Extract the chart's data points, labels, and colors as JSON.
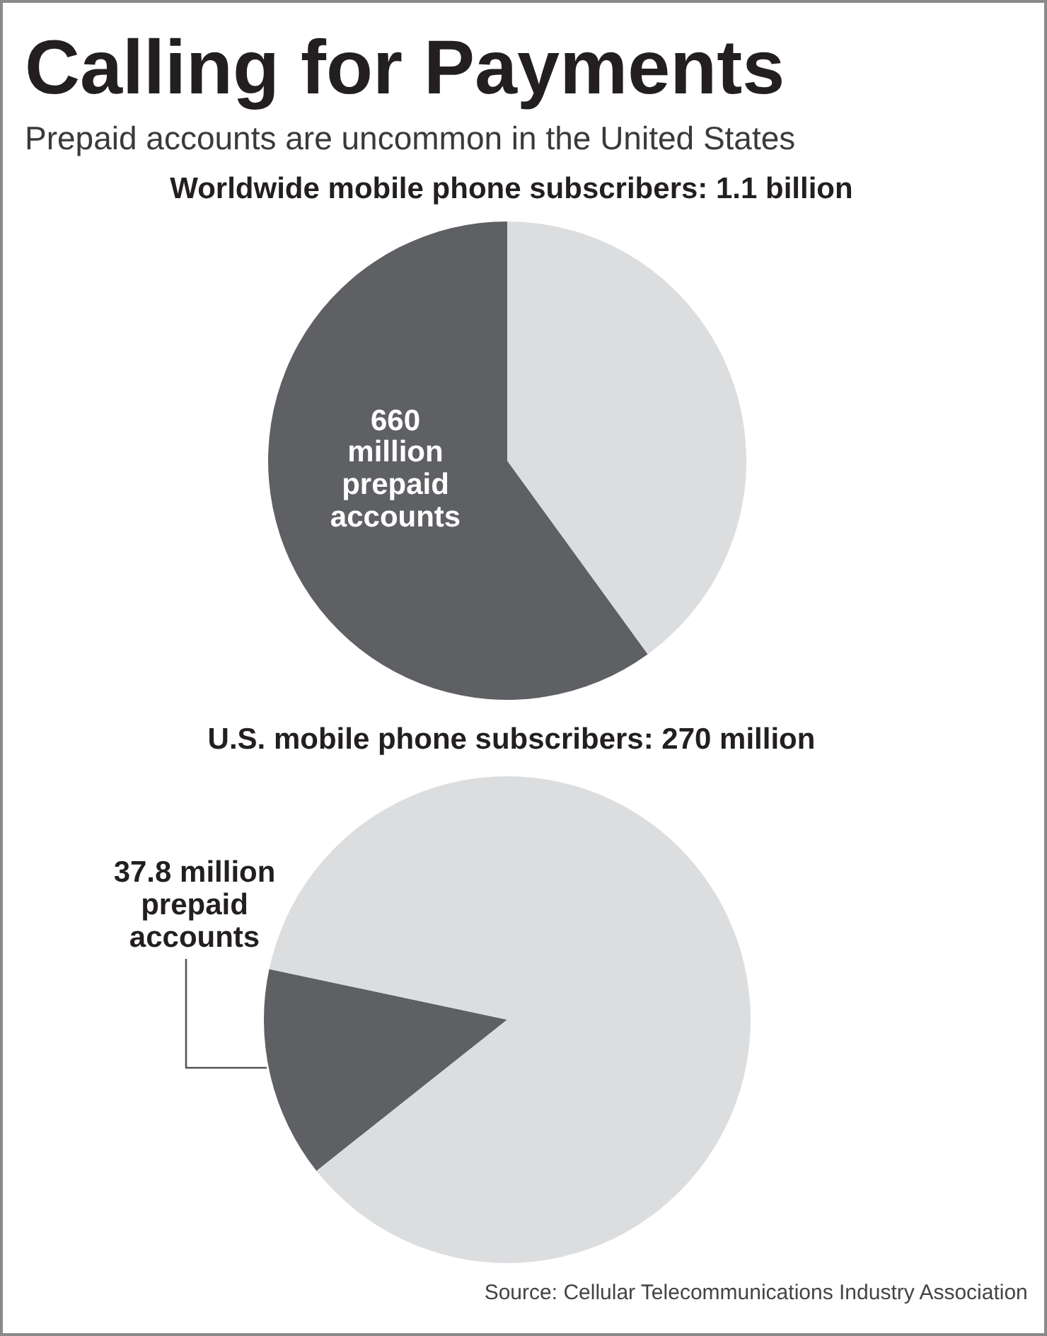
{
  "chart_data": [
    {
      "type": "other",
      "title": "Calling for Payments",
      "subtitle": "Prepaid accounts are uncommon in the United States"
    },
    {
      "type": "pie",
      "title": "Worldwide mobile phone subscribers: 1.1 billion",
      "categories": [
        "prepaid accounts",
        null
      ],
      "values": [
        660,
        440
      ],
      "colors": [
        "#5f6064",
        "#dcdddf"
      ],
      "value_labels": [
        "660 million",
        null
      ]
    },
    {
      "type": "pie",
      "title": "U.S. mobile phone subscribers: 270 million",
      "categories": [
        "prepaid accounts",
        null
      ],
      "values": [
        37.8,
        232.2
      ],
      "colors": [
        "#5f6064",
        "#dcdddf"
      ],
      "value_labels": [
        "37.8 million",
        null
      ],
      "annotations": [
        "Source: Cellular Telecommunications Industry Association"
      ]
    }
  ]
}
